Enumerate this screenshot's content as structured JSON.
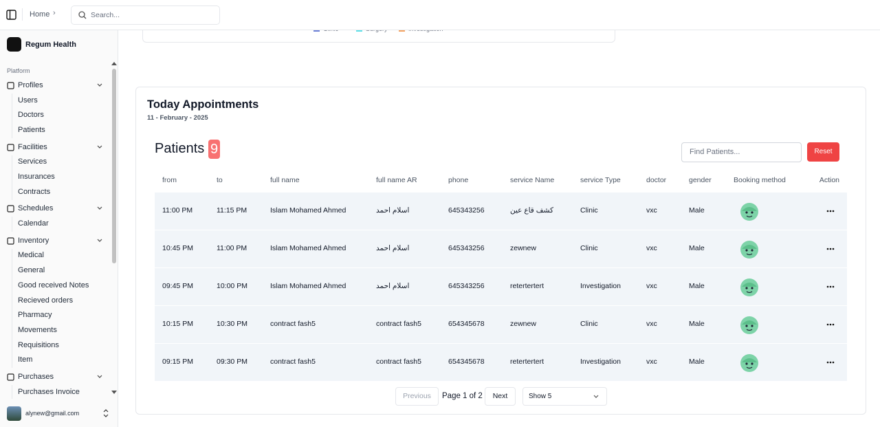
{
  "topbar": {
    "breadcrumb": "Home",
    "search_placeholder": "Search..."
  },
  "sidebar": {
    "brand": "Regum Health",
    "section": "Platform",
    "groups": [
      {
        "label": "Profiles",
        "items": [
          "Users",
          "Doctors",
          "Patients"
        ]
      },
      {
        "label": "Facilities",
        "items": [
          "Services",
          "Insurances",
          "Contracts"
        ]
      },
      {
        "label": "Schedules",
        "items": [
          "Calendar"
        ]
      },
      {
        "label": "Inventory",
        "items": [
          "Medical",
          "General",
          "Good received Notes",
          "Recieved orders",
          "Pharmacy",
          "Movements",
          "Requisitions",
          "Item"
        ]
      },
      {
        "label": "Purchases",
        "items": [
          "Purchases Invoice"
        ]
      }
    ],
    "user_email": "alynew@gmail.com"
  },
  "chart_legend": [
    "Clinic",
    "Surgery",
    "Investigation"
  ],
  "appointments": {
    "title": "Today Appointments",
    "date": "11 - February - 2025",
    "heading": "Patients",
    "count": 9,
    "search_placeholder": "Find Patients...",
    "reset": "Reset",
    "columns": [
      "from",
      "to",
      "full name",
      "full name AR",
      "phone",
      "service Name",
      "service Type",
      "doctor",
      "gender",
      "Booking method",
      "Action"
    ],
    "rows": [
      [
        "11:00 PM",
        "11:15 PM",
        "Islam Mohamed Ahmed",
        "اسلام احمد",
        "645343256",
        "كشف قاع عين",
        "Clinic",
        "vxc",
        "Male"
      ],
      [
        "10:45 PM",
        "11:00 PM",
        "Islam Mohamed Ahmed",
        "اسلام احمد",
        "645343256",
        "zewnew",
        "Clinic",
        "vxc",
        "Male"
      ],
      [
        "09:45 PM",
        "10:00 PM",
        "Islam Mohamed Ahmed",
        "اسلام احمد",
        "645343256",
        "retertertert",
        "Investigation",
        "vxc",
        "Male"
      ],
      [
        "10:15 PM",
        "10:30 PM",
        "contract fash5",
        "contract fash5",
        "654345678",
        "zewnew",
        "Clinic",
        "vxc",
        "Male"
      ],
      [
        "09:15 PM",
        "09:30 PM",
        "contract fash5",
        "contract fash5",
        "654345678",
        "retertertert",
        "Investigation",
        "vxc",
        "Male"
      ]
    ],
    "pagination": {
      "previous": "Previous",
      "page": "Page 1 of 2",
      "next": "Next",
      "page_size": "Show 5"
    }
  }
}
